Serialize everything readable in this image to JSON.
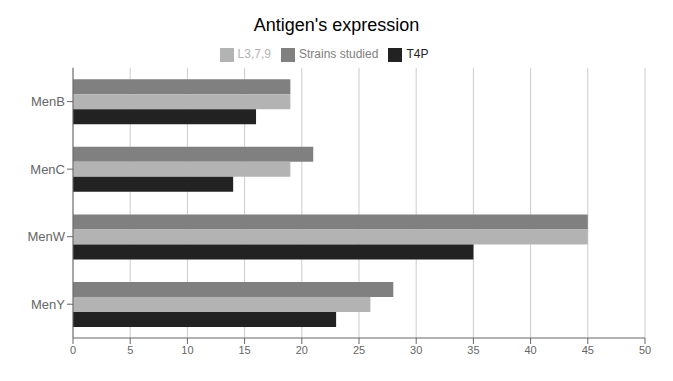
{
  "chart_data": {
    "type": "bar",
    "title": "Antigen's expression",
    "orientation": "horizontal",
    "categories": [
      "MenY",
      "MenW",
      "MenC",
      "MenB"
    ],
    "series": [
      {
        "name": "Strains studied",
        "color": "#808080",
        "values": [
          28,
          45,
          21,
          19
        ]
      },
      {
        "name": "L3,7,9",
        "color": "#b3b3b3",
        "values": [
          26,
          45,
          19,
          19
        ]
      },
      {
        "name": "T4P",
        "color": "#222222",
        "values": [
          23,
          35,
          14,
          16
        ]
      }
    ],
    "xlim": [
      0,
      50
    ],
    "xticks": [
      0,
      5,
      10,
      15,
      20,
      25,
      30,
      35,
      40,
      45,
      50
    ],
    "grid": true,
    "legend": "top"
  }
}
